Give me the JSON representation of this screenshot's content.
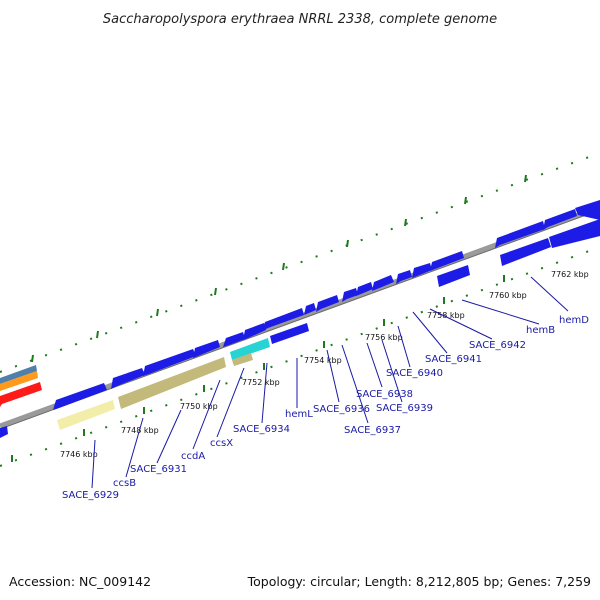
{
  "title": "Saccharopolyspora erythraea NRRL 2338, complete genome",
  "footer": {
    "accession": "Accession: NC_009142",
    "summary": "Topology: circular; Length: 8,212,805 bp; Genes: 7,259"
  },
  "colors": {
    "backbone": "#8c8c8c",
    "cds": "#1c1ce6",
    "gene_label": "#1a1aa6",
    "tick_mark": "#1f7a1f",
    "khaki": "#c2b97a",
    "pale_yellow": "#f2eeaa",
    "cyan": "#27d3d3",
    "red": "#ff1a1a",
    "orange": "#ff9a1a",
    "steel_blue": "#4f7faa"
  },
  "ticks": [
    "7746 kbp",
    "7748 kbp",
    "7750 kbp",
    "7752 kbp",
    "7754 kbp",
    "7756 kbp",
    "7758 kbp",
    "7760 kbp",
    "7762 kbp"
  ],
  "genes": [
    "SACE_6929",
    "ccsB",
    "SACE_6931",
    "ccdA",
    "ccsX",
    "SACE_6934",
    "hemL",
    "SACE_6936",
    "SACE_6937",
    "SACE_6938",
    "SACE_6939",
    "SACE_6940",
    "SACE_6941",
    "SACE_6942",
    "hemB",
    "hemD"
  ]
}
